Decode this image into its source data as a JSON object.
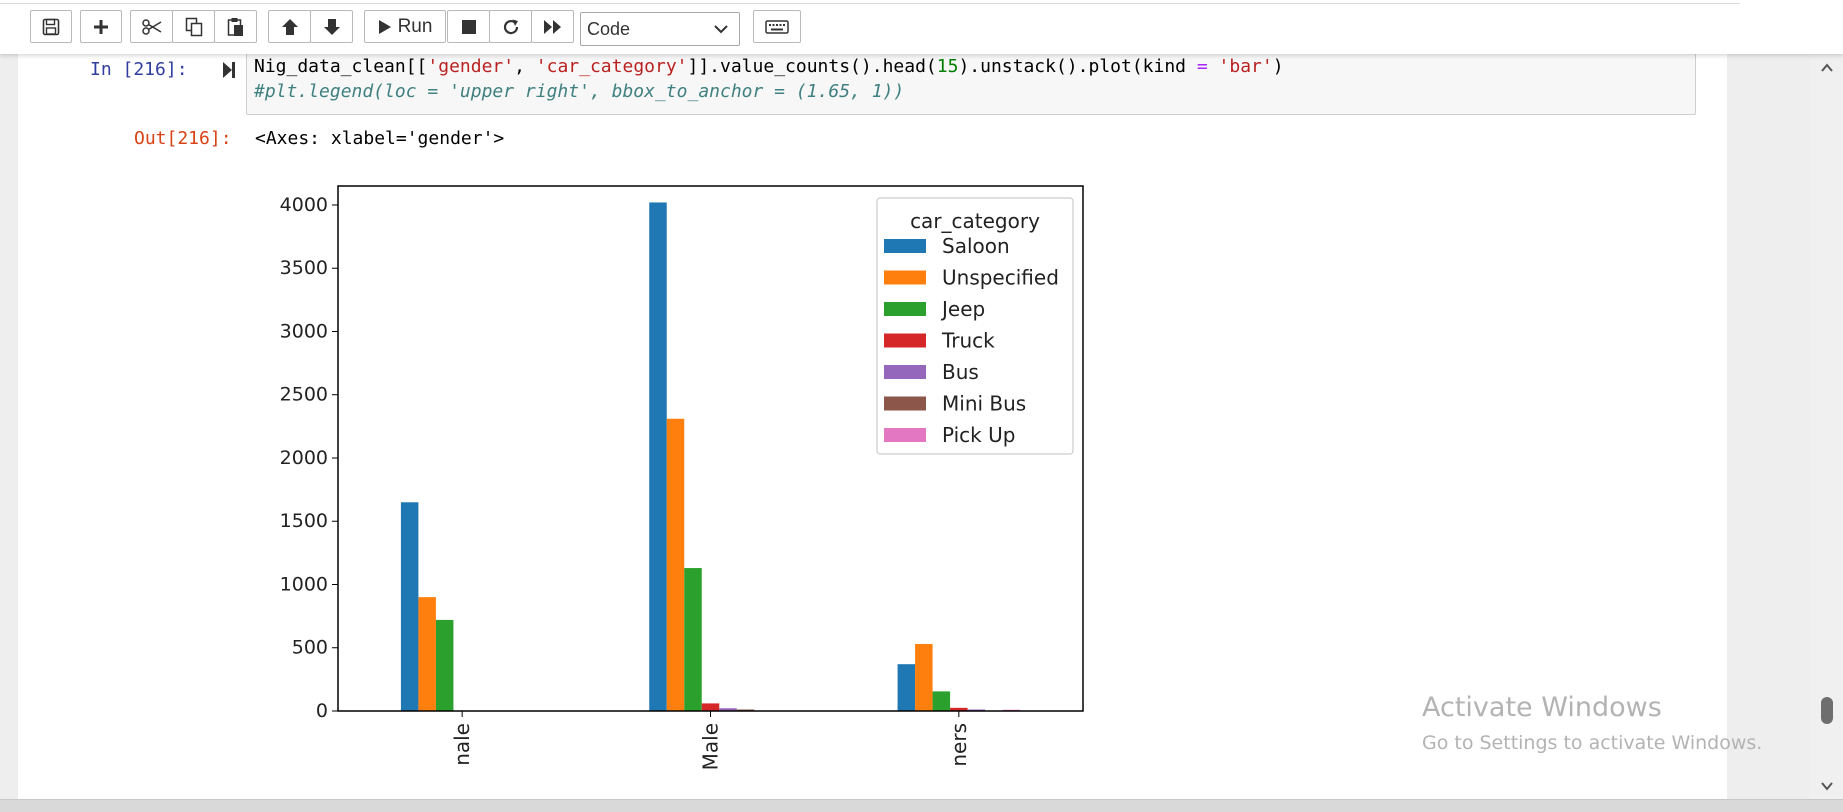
{
  "toolbar": {
    "run_label": "Run",
    "cell_type": "Code",
    "icons": [
      "save-icon",
      "plus-icon",
      "cut-icon",
      "copy-icon",
      "paste-icon",
      "arrow-up-icon",
      "arrow-down-icon",
      "play-icon",
      "stop-icon",
      "restart-icon",
      "fast-forward-icon",
      "keyboard-icon"
    ]
  },
  "cell": {
    "in_prompt": "In [216]:",
    "out_prompt": "Out[216]:",
    "code_line1": {
      "p1": "Nig_data_clean[[",
      "s1": "'gender'",
      "p2": ", ",
      "s2": "'car_category'",
      "p3": "]].value_counts().head(",
      "n1": "15",
      "p4": ").unstack().plot(kind ",
      "op": "=",
      "p5": " ",
      "s3": "'bar'",
      "p6": ")"
    },
    "code_line2": "#plt.legend(loc = 'upper right', bbox_to_anchor = (1.65, 1))",
    "output_text": "<Axes: xlabel='gender'>"
  },
  "chart_data": {
    "type": "bar",
    "categories": [
      "Female",
      "Male",
      "Others"
    ],
    "visible_category_labels": [
      "nale",
      "Male",
      "ners"
    ],
    "ylim": [
      0,
      4150
    ],
    "yticks": [
      0,
      500,
      1000,
      1500,
      2000,
      2500,
      3000,
      3500,
      4000
    ],
    "legend_title": "car_category",
    "legend_position": "upper right",
    "series": [
      {
        "name": "Saloon",
        "color": "#1f77b4",
        "values": [
          1650,
          4020,
          370
        ]
      },
      {
        "name": "Unspecified",
        "color": "#ff7f0e",
        "values": [
          900,
          2310,
          530
        ]
      },
      {
        "name": "Jeep",
        "color": "#2ca02c",
        "values": [
          720,
          1130,
          155
        ]
      },
      {
        "name": "Truck",
        "color": "#d62728",
        "values": [
          0,
          60,
          25
        ]
      },
      {
        "name": "Bus",
        "color": "#9467bd",
        "values": [
          0,
          22,
          12
        ]
      },
      {
        "name": "Mini Bus",
        "color": "#8c564b",
        "values": [
          0,
          12,
          0
        ]
      },
      {
        "name": "Pick Up",
        "color": "#e377c2",
        "values": [
          0,
          0,
          10
        ]
      }
    ]
  },
  "watermark": {
    "line1": "Activate Windows",
    "line2": "Go to Settings to activate Windows."
  }
}
